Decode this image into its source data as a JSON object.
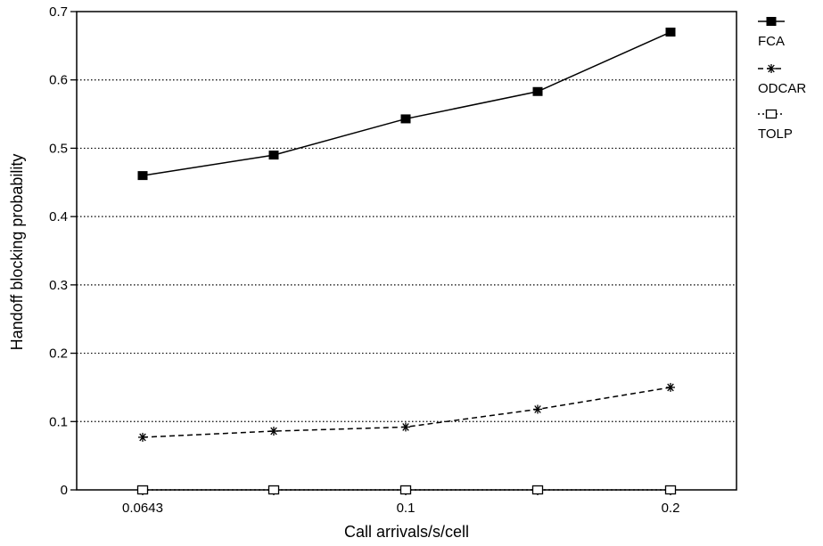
{
  "chart_data": {
    "type": "line",
    "title": "",
    "xlabel": "Call arrivals/s/cell",
    "ylabel": "Handoff blocking probability",
    "categories": [
      "0.0643",
      "",
      "0.1",
      "",
      "0.2"
    ],
    "ylim": [
      0,
      0.7
    ],
    "yticks": [
      "0",
      "0.1",
      "0.2",
      "0.3",
      "0.4",
      "0.5",
      "0.6",
      "0.7"
    ],
    "grid": "horizontal dotted",
    "legend_position": "right",
    "series": [
      {
        "name": "FCA",
        "values": [
          0.46,
          0.49,
          0.543,
          0.583,
          0.67
        ],
        "line": "solid",
        "marker": "filled-square"
      },
      {
        "name": "ODCAR",
        "values": [
          0.077,
          0.086,
          0.092,
          0.118,
          0.15
        ],
        "line": "dashed",
        "marker": "asterisk"
      },
      {
        "name": "TOLP",
        "values": [
          0,
          0,
          0,
          0,
          0
        ],
        "line": "dotted",
        "marker": "open-square"
      }
    ]
  }
}
